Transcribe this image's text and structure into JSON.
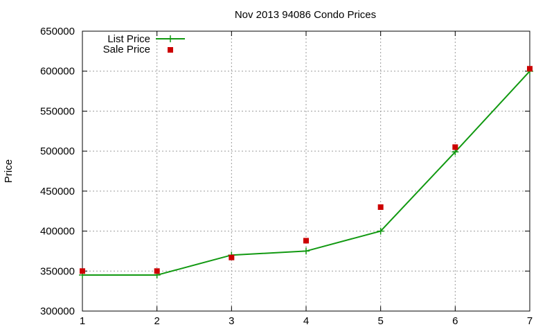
{
  "chart_data": {
    "type": "line",
    "title": "Nov 2013 94086 Condo Prices",
    "xlabel": "",
    "ylabel": "Price",
    "x": [
      1,
      2,
      3,
      4,
      5,
      6,
      7
    ],
    "xlim": [
      1,
      7
    ],
    "ylim": [
      300000,
      650000
    ],
    "xticks": [
      "1",
      "2",
      "3",
      "4",
      "5",
      "6",
      "7"
    ],
    "yticks": [
      "300000",
      "350000",
      "400000",
      "450000",
      "500000",
      "550000",
      "600000",
      "650000"
    ],
    "grid": true,
    "legend_position": "top-left",
    "series": [
      {
        "name": "List Price",
        "style": "line-with-plus-markers",
        "color": "#119911",
        "values": [
          345000,
          345000,
          370000,
          375000,
          400000,
          499000,
          600000
        ]
      },
      {
        "name": "Sale Price",
        "style": "square-points",
        "color": "#cc0000",
        "values": [
          350000,
          350000,
          367000,
          388000,
          430000,
          505000,
          603000
        ]
      }
    ]
  }
}
